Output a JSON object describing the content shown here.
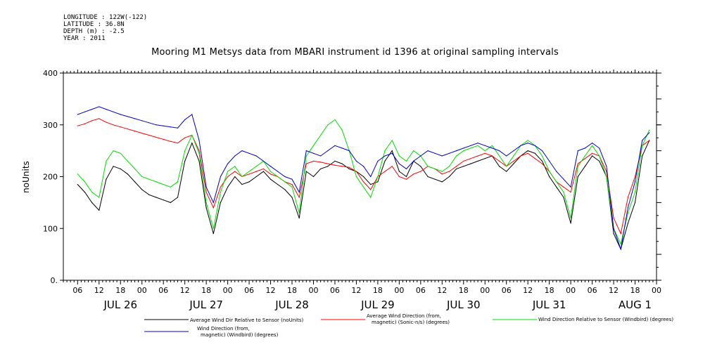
{
  "meta_lines": [
    "LONGITUDE : 122W(-122)",
    "LATITUDE : 36.8N",
    "DEPTH (m) : -2.5",
    "YEAR : 2011"
  ],
  "chart_data": {
    "type": "line",
    "title": "Mooring M1 Metsys data from MBARI instrument id 1396 at original sampling intervals",
    "ylabel": "noUnits",
    "ylim": [
      0,
      400
    ],
    "yticks": [
      0,
      100,
      200,
      300,
      400
    ],
    "ytick_labels": [
      "0.",
      "100",
      "200",
      "300",
      "400"
    ],
    "xlim_hours": [
      -4,
      162
    ],
    "hour_ticks": [
      "06",
      "12",
      "18",
      "00",
      "06",
      "12",
      "18",
      "00",
      "06",
      "12",
      "18",
      "00",
      "06",
      "12",
      "18",
      "00",
      "06",
      "12",
      "18",
      "00",
      "06",
      "12",
      "18",
      "00",
      "06",
      "12",
      "18",
      "00",
      "00"
    ],
    "day_labels": [
      "JUL 26",
      "JUL 27",
      "JUL 28",
      "JUL 29",
      "JUL 30",
      "JUL 31",
      "AUG  1"
    ],
    "series": [
      {
        "name": "Average Wind Dir Relative to Sensor (noUnits)",
        "color": "#000000",
        "x": [
          0,
          2,
          4,
          6,
          8,
          10,
          12,
          14,
          16,
          18,
          20,
          22,
          24,
          26,
          28,
          30,
          32,
          34,
          36,
          38,
          40,
          42,
          44,
          46,
          48,
          50,
          52,
          54,
          56,
          58,
          60,
          62,
          64,
          66,
          68,
          70,
          72,
          74,
          76,
          78,
          80,
          82,
          84,
          86,
          88,
          90,
          92,
          94,
          96,
          98,
          100,
          102,
          104,
          106,
          108,
          110,
          112,
          114,
          116,
          118,
          120,
          122,
          124,
          126,
          128,
          130,
          132,
          134,
          136,
          138,
          140,
          142,
          144,
          146,
          148,
          150,
          152,
          154,
          156,
          158,
          160
        ],
        "values": [
          185,
          170,
          150,
          135,
          195,
          220,
          215,
          205,
          190,
          175,
          165,
          160,
          155,
          150,
          160,
          230,
          265,
          230,
          140,
          90,
          150,
          180,
          200,
          185,
          190,
          200,
          210,
          195,
          185,
          175,
          160,
          120,
          210,
          200,
          215,
          220,
          230,
          225,
          215,
          210,
          200,
          185,
          190,
          230,
          250,
          210,
          200,
          230,
          220,
          200,
          195,
          190,
          200,
          215,
          220,
          225,
          230,
          235,
          240,
          220,
          210,
          225,
          240,
          250,
          245,
          230,
          200,
          180,
          160,
          110,
          200,
          220,
          240,
          230,
          200,
          90,
          60,
          110,
          150,
          240,
          270
        ]
      },
      {
        "name": "Average Wind Direction (from, magnetic) (Sonic-n/s) (degrees)",
        "color": "#ff0000",
        "x": [
          0,
          2,
          4,
          6,
          8,
          10,
          12,
          14,
          16,
          18,
          20,
          22,
          24,
          26,
          28,
          30,
          32,
          34,
          36,
          38,
          40,
          42,
          44,
          46,
          48,
          50,
          52,
          54,
          56,
          58,
          60,
          62,
          64,
          66,
          68,
          70,
          72,
          74,
          76,
          78,
          80,
          82,
          84,
          86,
          88,
          90,
          92,
          94,
          96,
          98,
          100,
          102,
          104,
          106,
          108,
          110,
          112,
          114,
          116,
          118,
          120,
          122,
          124,
          126,
          128,
          130,
          132,
          134,
          136,
          138,
          140,
          142,
          144,
          146,
          148,
          150,
          152,
          154,
          156,
          158,
          160
        ],
        "values": [
          298,
          302,
          308,
          312,
          305,
          300,
          296,
          292,
          288,
          284,
          280,
          276,
          272,
          268,
          265,
          275,
          280,
          250,
          170,
          140,
          180,
          200,
          210,
          200,
          205,
          210,
          215,
          205,
          200,
          190,
          185,
          160,
          225,
          230,
          228,
          225,
          222,
          220,
          218,
          210,
          190,
          175,
          200,
          210,
          220,
          200,
          195,
          205,
          210,
          220,
          215,
          205,
          210,
          220,
          230,
          235,
          240,
          245,
          240,
          230,
          220,
          230,
          240,
          245,
          235,
          225,
          210,
          190,
          180,
          170,
          225,
          235,
          245,
          240,
          210,
          120,
          90,
          160,
          200,
          260,
          270
        ]
      },
      {
        "name": "Wind Direction Relative to Sensor (Windbird) (degrees)",
        "color": "#00dd00",
        "x": [
          0,
          2,
          4,
          6,
          8,
          10,
          12,
          14,
          16,
          18,
          20,
          22,
          24,
          26,
          28,
          30,
          32,
          34,
          36,
          38,
          40,
          42,
          44,
          46,
          48,
          50,
          52,
          54,
          56,
          58,
          60,
          62,
          64,
          66,
          68,
          70,
          72,
          74,
          76,
          78,
          80,
          82,
          84,
          86,
          88,
          90,
          92,
          94,
          96,
          98,
          100,
          102,
          104,
          106,
          108,
          110,
          112,
          114,
          116,
          118,
          120,
          122,
          124,
          126,
          128,
          130,
          132,
          134,
          136,
          138,
          140,
          142,
          144,
          146,
          148,
          150,
          152,
          154,
          156,
          158,
          160
        ],
        "values": [
          205,
          190,
          170,
          160,
          230,
          250,
          245,
          230,
          215,
          200,
          195,
          190,
          185,
          180,
          190,
          250,
          280,
          245,
          150,
          100,
          170,
          210,
          220,
          200,
          210,
          220,
          230,
          210,
          200,
          190,
          180,
          130,
          240,
          260,
          280,
          300,
          310,
          290,
          250,
          200,
          180,
          160,
          200,
          250,
          270,
          240,
          230,
          250,
          240,
          220,
          215,
          210,
          220,
          240,
          250,
          255,
          260,
          250,
          260,
          240,
          220,
          240,
          260,
          270,
          260,
          240,
          210,
          190,
          170,
          120,
          220,
          240,
          260,
          240,
          200,
          100,
          70,
          130,
          170,
          260,
          290
        ]
      },
      {
        "name": "Wind Direction (from, magnetic) (Windbird) (degrees)",
        "color": "#0000cc",
        "x": [
          0,
          2,
          4,
          6,
          8,
          10,
          12,
          14,
          16,
          18,
          20,
          22,
          24,
          26,
          28,
          30,
          32,
          34,
          36,
          38,
          40,
          42,
          44,
          46,
          48,
          50,
          52,
          54,
          56,
          58,
          60,
          62,
          64,
          66,
          68,
          70,
          72,
          74,
          76,
          78,
          80,
          82,
          84,
          86,
          88,
          90,
          92,
          94,
          96,
          98,
          100,
          102,
          104,
          106,
          108,
          110,
          112,
          114,
          116,
          118,
          120,
          122,
          124,
          126,
          128,
          130,
          132,
          134,
          136,
          138,
          140,
          142,
          144,
          146,
          148,
          150,
          152,
          154,
          156,
          158,
          160
        ],
        "values": [
          320,
          325,
          330,
          335,
          330,
          325,
          320,
          316,
          312,
          308,
          304,
          300,
          298,
          296,
          294,
          310,
          320,
          270,
          180,
          150,
          200,
          225,
          240,
          250,
          245,
          240,
          230,
          220,
          210,
          200,
          195,
          170,
          250,
          245,
          240,
          250,
          260,
          255,
          250,
          230,
          220,
          200,
          230,
          240,
          245,
          225,
          215,
          230,
          240,
          250,
          245,
          240,
          245,
          250,
          255,
          260,
          265,
          260,
          255,
          250,
          240,
          250,
          260,
          265,
          260,
          250,
          230,
          210,
          195,
          180,
          250,
          255,
          265,
          255,
          220,
          100,
          60,
          140,
          190,
          270,
          285
        ]
      }
    ],
    "legend_placement": "bottom",
    "grid": false
  },
  "legend_labels": {
    "s1": "Average Wind Dir Relative to Sensor (noUnits)",
    "s2a": "Average Wind Direction (from,",
    "s2b": "magnetic) (Sonic-n/s) (degrees)",
    "s3": "Wind Direction Relative to Sensor (Windbird) (degrees)",
    "s4a": "Wind Direction (from,",
    "s4b": "magnetic) (Windbird) (degrees)"
  }
}
